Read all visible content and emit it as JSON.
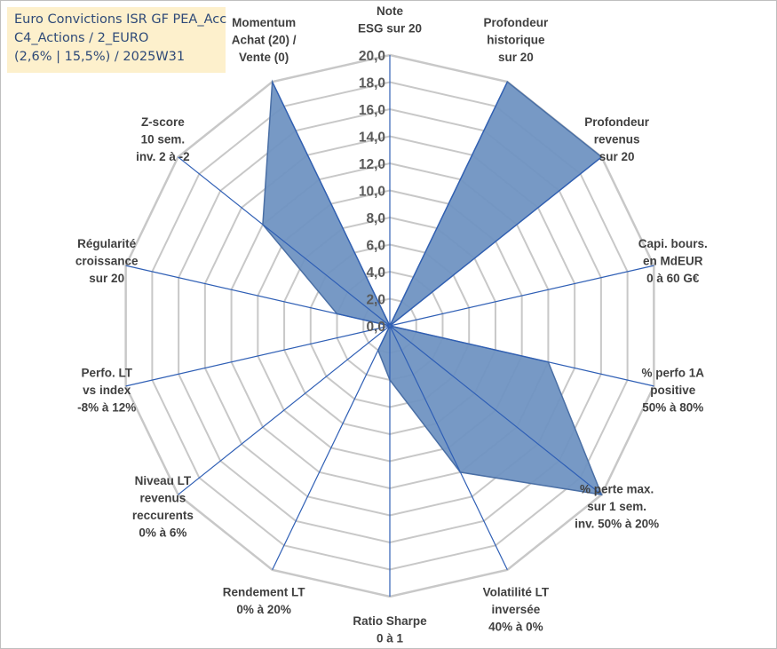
{
  "title_lines": [
    "Euro Convictions ISR GF PEA_Acc",
    "C4_Actions / 2_EURO",
    "(2,6% | 15,5%) / 2025W31"
  ],
  "chart_data": {
    "type": "radar",
    "rmin": 0,
    "rmax": 20,
    "tick_step": 2,
    "gridlines": true,
    "tick_labels": [
      "0,0",
      "2,0",
      "4,0",
      "6,0",
      "8,0",
      "10,0",
      "12,0",
      "14,0",
      "16,0",
      "18,0",
      "20,0"
    ],
    "categories": [
      [
        "Note",
        "ESG sur 20"
      ],
      [
        "Profondeur",
        "historique",
        "sur 20"
      ],
      [
        "Profondeur",
        "revenus",
        "sur 20"
      ],
      [
        "Capi. bours.",
        "en MdEUR",
        "0 à 60 G€"
      ],
      [
        "% perfo 1A",
        "positive",
        "50% à 80%"
      ],
      [
        "% perte max.",
        "sur 1 sem.",
        "inv. 50% à 20%"
      ],
      [
        "Volatilité LT",
        "inversée",
        "40% à 0%"
      ],
      [
        "Ratio Sharpe",
        "0 à 1"
      ],
      [
        "Rendement LT",
        "0% à 20%"
      ],
      [
        "Niveau LT",
        "revenus",
        "reccurents",
        "0% à 6%"
      ],
      [
        "Perfo. LT",
        "vs index",
        "-8% à 12%"
      ],
      [
        "Régularité",
        "croissance",
        "sur 20"
      ],
      [
        "Z-score",
        "10 sem.",
        "inv. 2 à -2"
      ],
      [
        "Momentum",
        "Achat (20) /",
        "Vente (0)"
      ]
    ],
    "values": [
      0,
      20,
      20,
      0,
      12,
      20,
      12,
      4,
      2,
      0,
      0,
      4,
      12,
      20
    ],
    "series_color": "#7094c2",
    "series_edge": "#4a6fa5",
    "grid_color": "#c8c8c8",
    "spoke_color": "#2f5fb5"
  }
}
